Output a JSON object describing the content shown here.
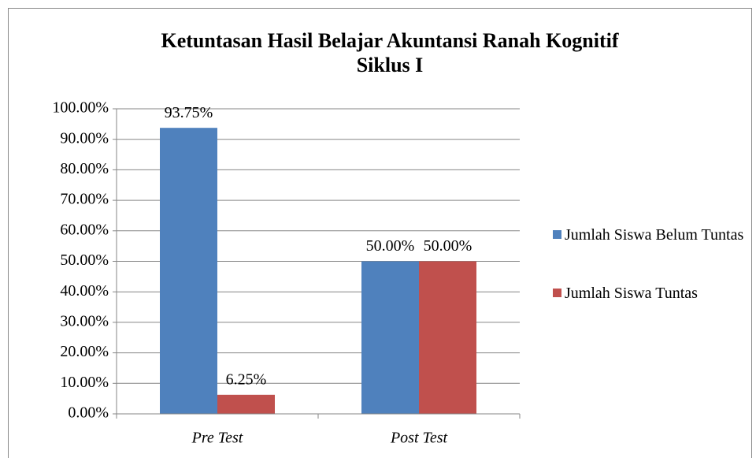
{
  "chart_data": {
    "type": "bar",
    "title": "Ketuntasan Hasil Belajar Akuntansi Ranah Kognitif Siklus I",
    "categories": [
      "Pre Test",
      "Post Test"
    ],
    "series": [
      {
        "name": "Jumlah Siswa Belum Tuntas",
        "color": "#4f81bd",
        "values": [
          93.75,
          50
        ],
        "value_labels": [
          "93.75%",
          "50.00%"
        ]
      },
      {
        "name": "Jumlah Siswa Tuntas",
        "color": "#c0504d",
        "values": [
          6.25,
          50
        ],
        "value_labels": [
          "6.25%",
          "50.00%"
        ]
      }
    ],
    "ylim": [
      0,
      100
    ],
    "yticks": [
      {
        "value": 0,
        "label": "0.00%"
      },
      {
        "value": 10,
        "label": "10.00%"
      },
      {
        "value": 20,
        "label": "20.00%"
      },
      {
        "value": 30,
        "label": "30.00%"
      },
      {
        "value": 40,
        "label": "40.00%"
      },
      {
        "value": 50,
        "label": "50.00%"
      },
      {
        "value": 60,
        "label": "60.00%"
      },
      {
        "value": 70,
        "label": "70.00%"
      },
      {
        "value": 80,
        "label": "80.00%"
      },
      {
        "value": 90,
        "label": "90.00%"
      },
      {
        "value": 100,
        "label": "100.00%"
      }
    ],
    "grid": true,
    "legend": "right"
  }
}
